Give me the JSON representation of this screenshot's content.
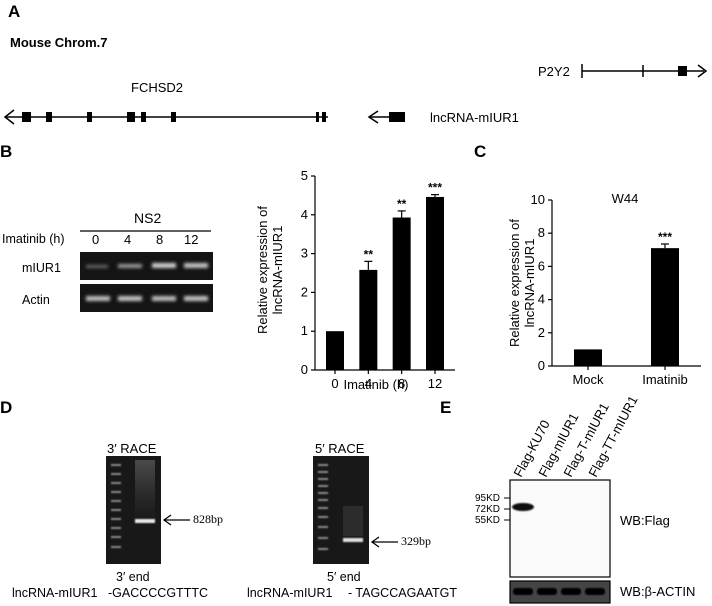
{
  "panels": {
    "A": {
      "letter": "A",
      "chrom_title": "Mouse Chrom.7",
      "genes": {
        "p2y2": "P2Y2",
        "fchsd2": "FCHSD2",
        "lnc": "lncRNA-mIUR1"
      }
    },
    "B": {
      "letter": "B",
      "gel": {
        "title": "NS2",
        "row_label": "Imatinib (h)",
        "lanes": [
          "0",
          "4",
          "8",
          "12"
        ],
        "rows": [
          "mIUR1",
          "Actin"
        ]
      }
    },
    "C": {
      "letter": "C",
      "title": "W44"
    },
    "D": {
      "letter": "D",
      "race3": {
        "title": "3′ RACE",
        "band": "828bp",
        "end_label": "3′ end",
        "seq_name": "lncRNA-mIUR1",
        "seq": "-GACCCCGTTTC"
      },
      "race5": {
        "title": "5′ RACE",
        "band": "329bp",
        "end_label": "5′ end",
        "seq_name": "lncRNA-mIUR1",
        "seq": "- TAGCCAGAATGT"
      }
    },
    "E": {
      "letter": "E",
      "lanes": [
        "Flag-KU70",
        "Flag-mIUR1",
        "Flag-T-mIUR1",
        "Flag-TT-mIUR1"
      ],
      "markers": [
        "95KD",
        "72KD",
        "55KD"
      ],
      "wb_top": "WB:Flag",
      "wb_bottom": "WB:β-ACTIN"
    }
  },
  "chart_data": [
    {
      "type": "bar",
      "panel": "B",
      "categories": [
        "0",
        "4",
        "8",
        "12"
      ],
      "values": [
        1.0,
        2.58,
        3.93,
        4.46
      ],
      "errors": [
        0,
        0.22,
        0.17,
        0.06
      ],
      "significance": [
        "",
        "**",
        "**",
        "***"
      ],
      "xlabel": "Imatinib (h)",
      "ylabel": "Relative expression of lncRNA-mIUR1",
      "ylim": [
        0,
        5
      ],
      "yticks": [
        0,
        1,
        2,
        3,
        4,
        5
      ],
      "color": "#000000"
    },
    {
      "type": "bar",
      "panel": "C",
      "categories": [
        "Mock",
        "Imatinib"
      ],
      "values": [
        1.0,
        7.1
      ],
      "errors": [
        0,
        0.25
      ],
      "significance": [
        "",
        "***"
      ],
      "xlabel": "",
      "ylabel": "Relative expression of lncRNA-mIUR1",
      "ylim": [
        0,
        10
      ],
      "yticks": [
        0,
        2,
        4,
        6,
        8,
        10
      ],
      "color": "#000000"
    }
  ]
}
